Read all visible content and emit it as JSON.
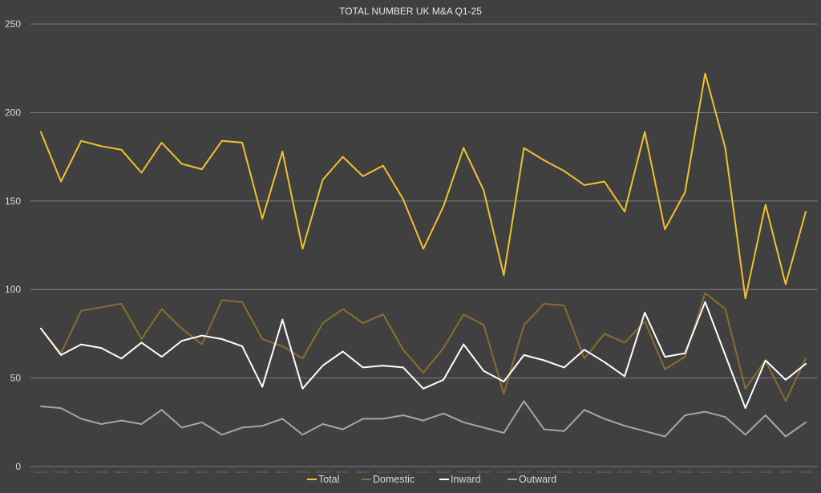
{
  "chart_data": {
    "type": "line",
    "title": "TOTAL NUMBER UK M&A Q1-25",
    "xlabel": "",
    "ylabel": "",
    "ylim": [
      0,
      250
    ],
    "yticks": [
      "0",
      "50",
      "100",
      "150",
      "200",
      "250"
    ],
    "grid": true,
    "legend_position": "bottom-center",
    "categories": [
      "Jan 2022",
      "Feb 2022",
      "Mar 2022",
      "Apr 2022",
      "May 2022",
      "Jun 2022",
      "Jul 2022",
      "Aug 2022",
      "Sep 2022",
      "Oct 2022",
      "Nov 2022",
      "Dec 2022",
      "Jan 2023",
      "Feb 2023",
      "Mar 2023",
      "Apr 2023",
      "May 2023",
      "Jun 2023",
      "Jul 2023",
      "Aug 2023",
      "Sep 2023",
      "Oct 2023",
      "Nov 2023",
      "Dec 2023",
      "Jan 2024",
      "Feb 2024",
      "Mar 2024",
      "Apr 2024",
      "May 2024",
      "Jun 2024",
      "Jul 2024",
      "Aug 2024",
      "Sep 2024",
      "Oct 2024",
      "Nov 2024",
      "Dec 2024",
      "Jan 2025",
      "Feb 2025",
      "Mar 2025"
    ],
    "series": [
      {
        "name": "Total",
        "color": "#f2c12e",
        "values": [
          189,
          161,
          184,
          181,
          179,
          166,
          183,
          171,
          168,
          184,
          183,
          140,
          178,
          123,
          162,
          175,
          164,
          170,
          151,
          123,
          147,
          180,
          156,
          108,
          180,
          173,
          167,
          159,
          161,
          144,
          189,
          134,
          155,
          222,
          180,
          95,
          148,
          103,
          144
        ]
      },
      {
        "name": "Domestic",
        "color": "#8a6d2f",
        "values": [
          78,
          64,
          88,
          90,
          92,
          72,
          89,
          78,
          69,
          94,
          93,
          72,
          68,
          61,
          81,
          89,
          81,
          86,
          66,
          53,
          67,
          86,
          80,
          41,
          80,
          92,
          91,
          61,
          75,
          70,
          82,
          55,
          62,
          98,
          89,
          44,
          60,
          37,
          61
        ]
      },
      {
        "name": "Inward",
        "color": "#ffffff",
        "values": [
          78,
          63,
          69,
          67,
          61,
          70,
          62,
          71,
          74,
          72,
          68,
          45,
          83,
          44,
          57,
          65,
          56,
          57,
          56,
          44,
          49,
          69,
          54,
          48,
          63,
          60,
          56,
          66,
          59,
          51,
          87,
          62,
          64,
          93,
          63,
          33,
          60,
          49,
          58
        ]
      },
      {
        "name": "Outward",
        "color": "#a6a6a6",
        "values": [
          34,
          33,
          27,
          24,
          26,
          24,
          32,
          22,
          25,
          18,
          22,
          23,
          27,
          18,
          24,
          21,
          27,
          27,
          29,
          26,
          30,
          25,
          22,
          19,
          37,
          21,
          20,
          32,
          27,
          23,
          20,
          17,
          29,
          31,
          28,
          18,
          29,
          17,
          25
        ]
      }
    ]
  }
}
